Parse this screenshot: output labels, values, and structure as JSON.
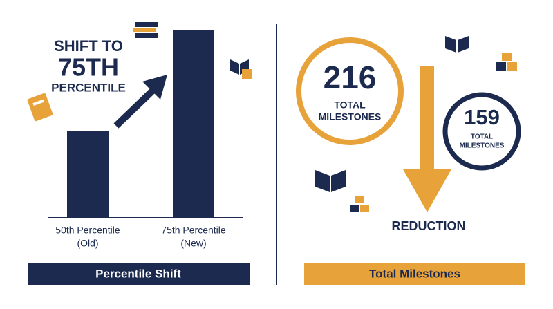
{
  "left": {
    "headline": [
      "SHIFT TO",
      "75TH",
      "PERCENTILE"
    ],
    "bars": [
      {
        "label": "50th Percentile",
        "sublabel": "(Old)"
      },
      {
        "label": "75th Percentile",
        "sublabel": "(New)"
      }
    ],
    "banner": "Percentile Shift"
  },
  "right": {
    "before": {
      "number": 216,
      "caption": [
        "TOTAL",
        "MILESTONES"
      ]
    },
    "after": {
      "number": 159,
      "caption": [
        "TOTAL",
        "MILESTONES"
      ]
    },
    "arrow_label": "REDUCTION",
    "banner": "Total Milestones"
  }
}
